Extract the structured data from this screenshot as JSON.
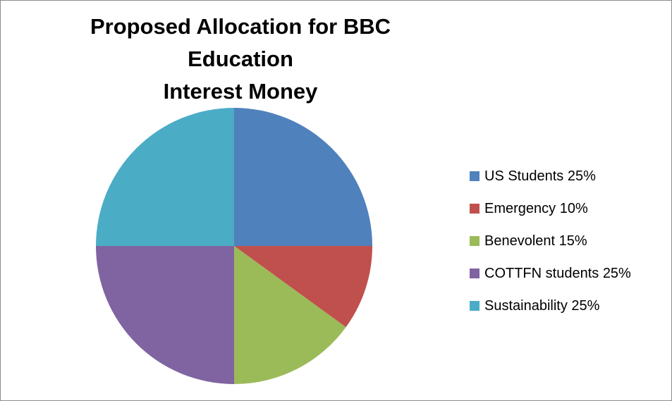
{
  "chart_data": {
    "type": "pie",
    "title_lines": [
      "Proposed Allocation for BBC Education",
      "Interest Money"
    ],
    "categories": [
      "US Students",
      "Emergency",
      "Benevolent",
      "COTTFN students",
      "Sustainability"
    ],
    "values": [
      25,
      10,
      15,
      25,
      25
    ],
    "legend": {
      "placement": "right",
      "labels": [
        "US Students 25%",
        "Emergency 10%",
        "Benevolent 15%",
        "COTTFN students 25%",
        "Sustainability 25%"
      ]
    },
    "colors": [
      "#4f81bd",
      "#c0504d",
      "#9bbb59",
      "#8064a2",
      "#4bacc6"
    ]
  }
}
